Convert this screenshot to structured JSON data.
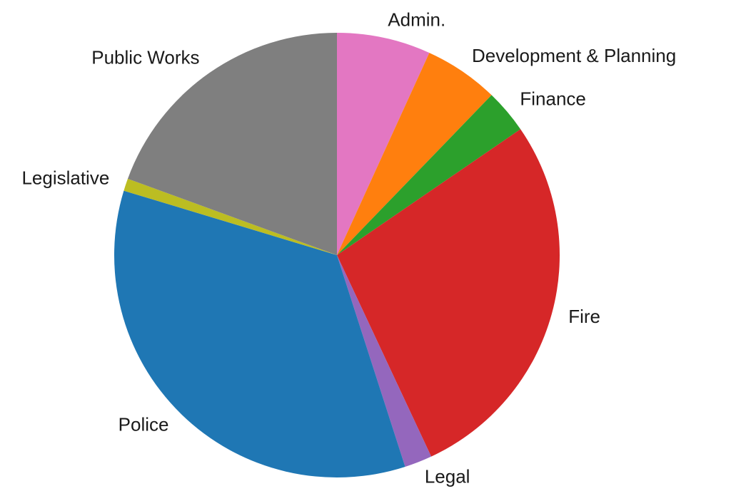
{
  "chart_data": {
    "type": "pie",
    "categories": [
      "Admin.",
      "Development & Planning",
      "Finance",
      "Fire",
      "Legal",
      "Police",
      "Legislative",
      "Public Works"
    ],
    "values": [
      6.8,
      5.4,
      3.2,
      27.6,
      2.0,
      34.6,
      0.9,
      19.4
    ],
    "colors": [
      "#e377c2",
      "#ff7f0e",
      "#2ca02c",
      "#d62728",
      "#9467bd",
      "#1f77b4",
      "#bcbd22",
      "#7f7f7f"
    ]
  }
}
